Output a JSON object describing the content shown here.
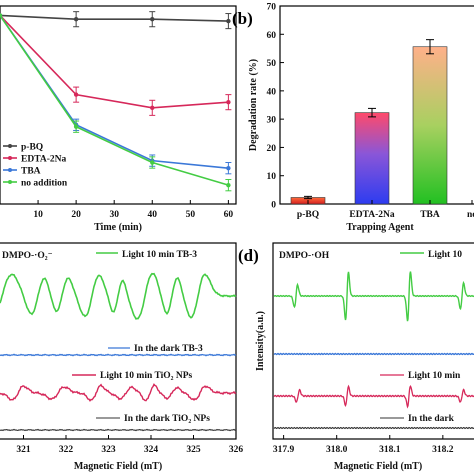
{
  "chart_data": [
    {
      "id": "a",
      "type": "line",
      "xlabel": "Time (min)",
      "ylabel": "",
      "x": [
        0,
        20,
        40,
        60
      ],
      "xlim": [
        0,
        62
      ],
      "ylim": [
        0,
        1.05
      ],
      "xticks": [
        10,
        20,
        30,
        40,
        50,
        60
      ],
      "legend_position": "bottom-left",
      "series": [
        {
          "name": "p-BQ",
          "color": "#444444",
          "marker": "circle",
          "values": [
            1.0,
            0.98,
            0.98,
            0.97
          ],
          "err": [
            0,
            0.04,
            0.04,
            0.04
          ]
        },
        {
          "name": "EDTA-2Na",
          "color": "#d6285a",
          "marker": "none",
          "values": [
            1.0,
            0.58,
            0.51,
            0.54
          ],
          "err": [
            0,
            0.04,
            0.04,
            0.04
          ]
        },
        {
          "name": "TBA",
          "color": "#3b78d8",
          "marker": "none",
          "values": [
            1.0,
            0.42,
            0.23,
            0.19
          ],
          "err": [
            0,
            0.03,
            0.03,
            0.03
          ]
        },
        {
          "name": "no addition",
          "color": "#44cc44",
          "marker": "none",
          "values": [
            1.0,
            0.41,
            0.22,
            0.1
          ],
          "err": [
            0,
            0.03,
            0.03,
            0.03
          ]
        }
      ]
    },
    {
      "id": "b",
      "type": "bar",
      "label": "(b)",
      "xlabel": "Trapping Agent",
      "ylabel": "Degradation rate (%)",
      "categories": [
        "p-BQ",
        "EDTA-2Na",
        "TBA",
        "no"
      ],
      "values": [
        2.3,
        32.3,
        55.6,
        null
      ],
      "err": [
        0.4,
        1.5,
        2.5,
        null
      ],
      "ylim": [
        0,
        70
      ],
      "yticks": [
        0,
        10,
        20,
        30,
        40,
        50,
        60,
        70
      ]
    },
    {
      "id": "c",
      "type": "line",
      "title": "DMPO-·O₂⁻",
      "xlabel": "Magnetic Field (mT)",
      "ylabel": "",
      "xlim": [
        320.4,
        326
      ],
      "xticks": [
        321,
        322,
        323,
        324,
        325,
        326
      ],
      "series": [
        {
          "name": "Light 10 min TB-3",
          "color": "#44cc44"
        },
        {
          "name": "In the dark TB-3",
          "color": "#3b78d8"
        },
        {
          "name": "Light 10 min TiO₂ NPs",
          "color": "#d6285a"
        },
        {
          "name": "In the dark TiO₂ NPs",
          "color": "#333333"
        }
      ]
    },
    {
      "id": "d",
      "type": "line",
      "label": "(d)",
      "title": "DMPO-·OH",
      "xlabel": "Magnetic Field (mT)",
      "ylabel": "Intensity(a.u.)",
      "xlim": [
        317.88,
        318.27
      ],
      "xticks": [
        317.9,
        318.0,
        318.1,
        318.2
      ],
      "series": [
        {
          "name": "Light 10",
          "color": "#44cc44"
        },
        {
          "name": "",
          "color": "#3b78d8"
        },
        {
          "name": "Light 10 min",
          "color": "#d6285a"
        },
        {
          "name": "In the dark",
          "color": "#333333"
        }
      ]
    }
  ]
}
